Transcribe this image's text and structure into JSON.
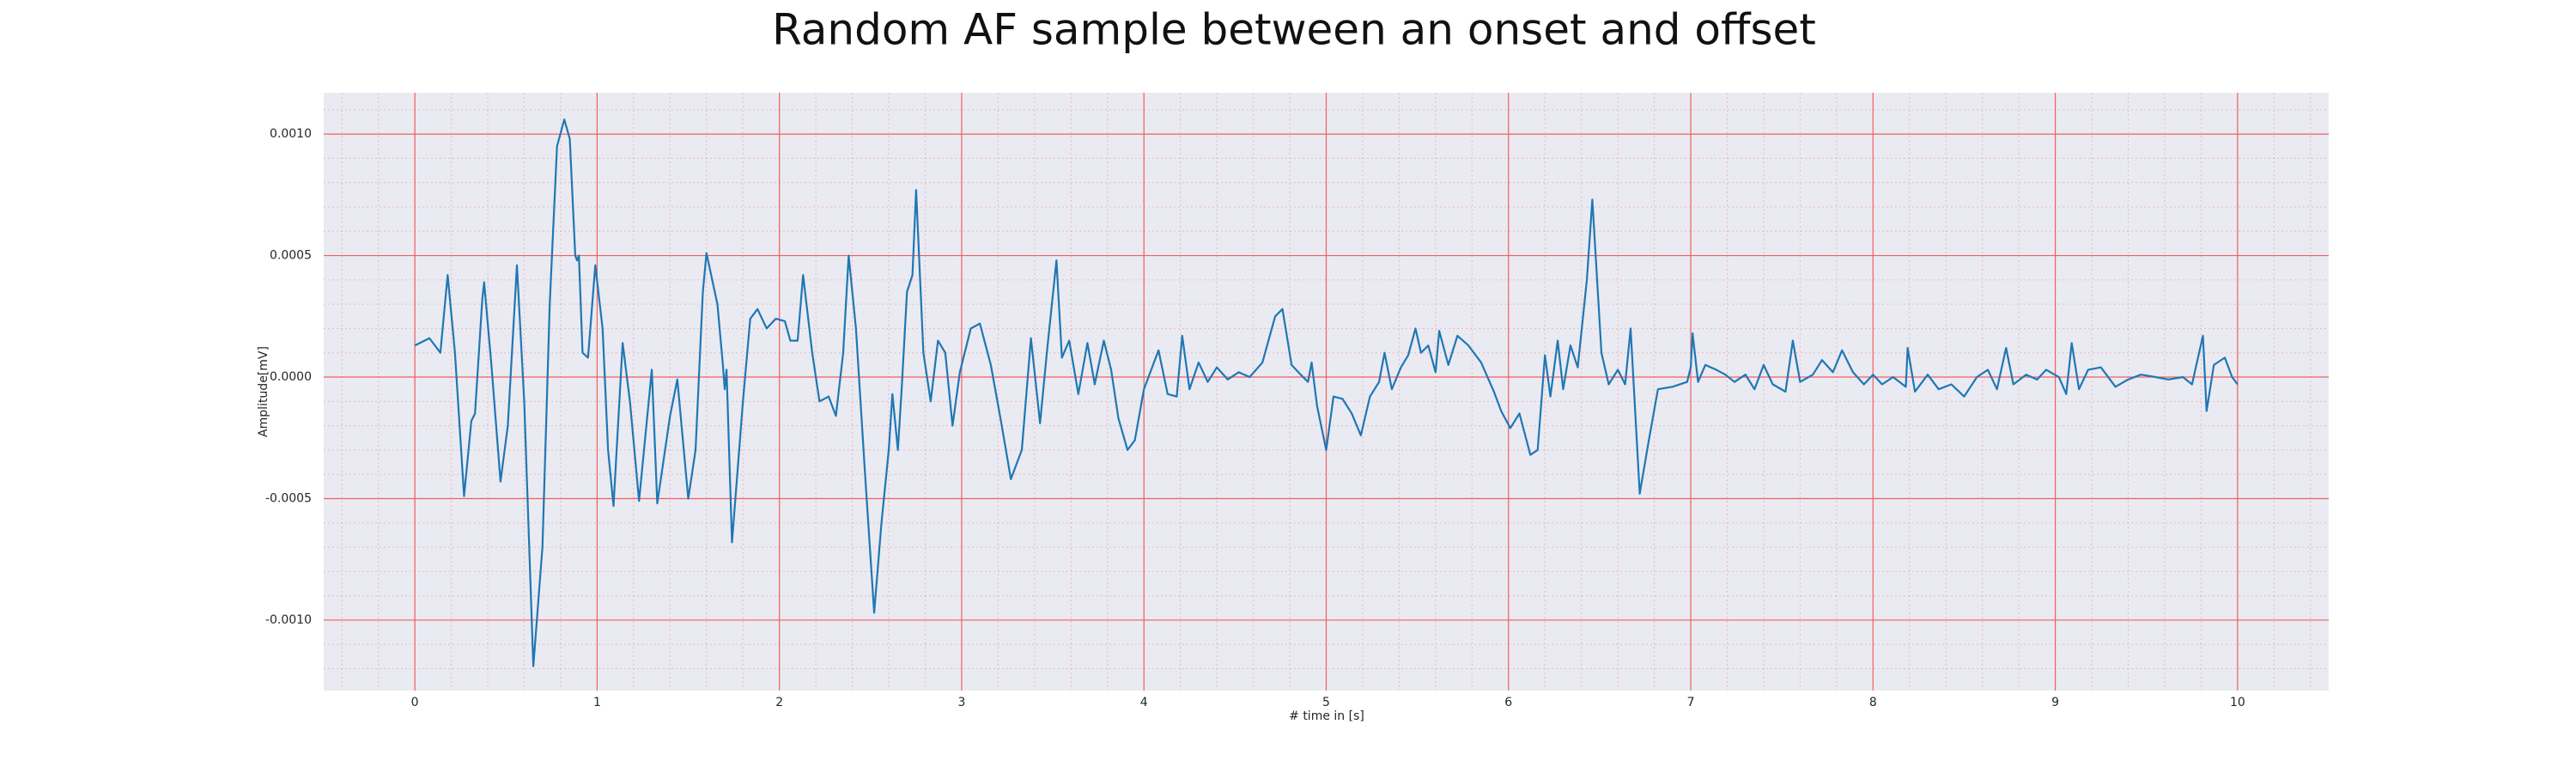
{
  "chart_data": {
    "type": "line",
    "title": "Random AF sample between an onset and offset",
    "x_label": "# time in [s]",
    "y_label": "Amplitude[mV]",
    "color": "#1f77b4",
    "grid": true,
    "grid_color": "#f06060",
    "minor_grid": {
      "x": 0.2,
      "y": 0.0001
    },
    "background": "#eaeaf2",
    "xlim": [
      -0.5,
      10.5
    ],
    "ylim": [
      -0.00129,
      0.00117
    ],
    "xticks": [
      0,
      1,
      2,
      3,
      4,
      5,
      6,
      7,
      8,
      9,
      10
    ],
    "yticks": [
      {
        "value": -0.001,
        "label": "-0.0010"
      },
      {
        "value": -0.0005,
        "label": "-0.0005"
      },
      {
        "value": 0,
        "label": "0.0000"
      },
      {
        "value": 0.0005,
        "label": "0.0005"
      },
      {
        "value": 0.001,
        "label": "0.0010"
      }
    ],
    "x": [
      0,
      0.08,
      0.14,
      0.18,
      0.22,
      0.27,
      0.31,
      0.33,
      0.37,
      0.38,
      0.42,
      0.47,
      0.51,
      0.56,
      0.6,
      0.65,
      0.7,
      0.74,
      0.78,
      0.82,
      0.85,
      0.88,
      0.89,
      0.9,
      0.92,
      0.95,
      0.99,
      1.03,
      1.06,
      1.09,
      1.14,
      1.18,
      1.23,
      1.3,
      1.33,
      1.4,
      1.44,
      1.5,
      1.54,
      1.58,
      1.6,
      1.66,
      1.69,
      1.7,
      1.71,
      1.74,
      1.8,
      1.84,
      1.88,
      1.93,
      1.98,
      2.03,
      2.06,
      2.1,
      2.13,
      2.18,
      2.22,
      2.27,
      2.31,
      2.35,
      2.38,
      2.42,
      2.47,
      2.52,
      2.56,
      2.6,
      2.62,
      2.65,
      2.67,
      2.7,
      2.73,
      2.75,
      2.79,
      2.83,
      2.87,
      2.91,
      2.95,
      2.99,
      3.05,
      3.1,
      3.16,
      3.22,
      3.27,
      3.33,
      3.38,
      3.43,
      3.47,
      3.52,
      3.55,
      3.59,
      3.64,
      3.69,
      3.73,
      3.78,
      3.82,
      3.86,
      3.91,
      3.95,
      4.0,
      4.08,
      4.13,
      4.18,
      4.21,
      4.25,
      4.3,
      4.35,
      4.4,
      4.46,
      4.52,
      4.58,
      4.65,
      4.72,
      4.76,
      4.81,
      4.86,
      4.9,
      4.92,
      4.95,
      5.0,
      5.04,
      5.09,
      5.14,
      5.19,
      5.24,
      5.29,
      5.32,
      5.36,
      5.41,
      5.45,
      5.49,
      5.52,
      5.56,
      5.6,
      5.62,
      5.67,
      5.72,
      5.78,
      5.85,
      5.92,
      5.96,
      6.01,
      6.06,
      6.12,
      6.16,
      6.2,
      6.23,
      6.27,
      6.3,
      6.34,
      6.38,
      6.43,
      6.46,
      6.51,
      6.55,
      6.6,
      6.64,
      6.67,
      6.72,
      6.77,
      6.82,
      6.9,
      6.98,
      7.0,
      7.01,
      7.04,
      7.08,
      7.14,
      7.19,
      7.24,
      7.3,
      7.35,
      7.4,
      7.45,
      7.52,
      7.56,
      7.6,
      7.67,
      7.72,
      7.78,
      7.83,
      7.89,
      7.95,
      8.0,
      8.05,
      8.11,
      8.18,
      8.19,
      8.23,
      8.3,
      8.36,
      8.43,
      8.5,
      8.57,
      8.63,
      8.68,
      8.73,
      8.77,
      8.84,
      8.9,
      8.95,
      9.02,
      9.06,
      9.09,
      9.13,
      9.18,
      9.25,
      9.33,
      9.4,
      9.47,
      9.55,
      9.62,
      9.7,
      9.75,
      9.81,
      9.83,
      9.87,
      9.93,
      9.97,
      10.0
    ],
    "values": [
      0.00013,
      0.00016,
      0.0001,
      0.00042,
      0.0001,
      -0.00049,
      -0.00018,
      -0.00015,
      0.00032,
      0.00039,
      5e-05,
      -0.00043,
      -0.0002,
      0.00046,
      -0.0001,
      -0.00119,
      -0.0007,
      0.0003,
      0.00095,
      0.00106,
      0.00098,
      0.0005,
      0.00048,
      0.0005,
      0.0001,
      8e-05,
      0.00046,
      0.0002,
      -0.0003,
      -0.00053,
      0.00014,
      -0.0001,
      -0.00051,
      3e-05,
      -0.00052,
      -0.00016,
      -1e-05,
      -0.0005,
      -0.0003,
      0.00035,
      0.00051,
      0.0003,
      5e-05,
      -5e-05,
      3e-05,
      -0.00068,
      -0.0001,
      0.00024,
      0.00028,
      0.0002,
      0.00024,
      0.00023,
      0.00015,
      0.00015,
      0.00042,
      0.0001,
      -0.0001,
      -8e-05,
      -0.00016,
      0.0001,
      0.0005,
      0.0002,
      -0.0004,
      -0.00097,
      -0.0006,
      -0.0003,
      -7e-05,
      -0.0003,
      -6e-05,
      0.00035,
      0.00042,
      0.00077,
      0.0001,
      -0.0001,
      0.00015,
      0.0001,
      -0.0002,
      2e-05,
      0.0002,
      0.00022,
      5e-05,
      -0.0002,
      -0.00042,
      -0.0003,
      0.00016,
      -0.00019,
      0.00012,
      0.00048,
      8e-05,
      0.00015,
      -7e-05,
      0.00014,
      -3e-05,
      0.00015,
      3e-05,
      -0.00017,
      -0.0003,
      -0.00026,
      -5e-05,
      0.00011,
      -7e-05,
      -8e-05,
      0.00017,
      -5e-05,
      6e-05,
      -2e-05,
      4e-05,
      -1e-05,
      2e-05,
      0.0,
      6e-05,
      0.00025,
      0.00028,
      5e-05,
      1e-05,
      -2e-05,
      6e-05,
      -0.00012,
      -0.0003,
      -8e-05,
      -9e-05,
      -0.00015,
      -0.00024,
      -8e-05,
      -2e-05,
      0.0001,
      -5e-05,
      4e-05,
      9e-05,
      0.0002,
      0.0001,
      0.00013,
      2e-05,
      0.00019,
      5e-05,
      0.00017,
      0.00013,
      6e-05,
      -6e-05,
      -0.00014,
      -0.00021,
      -0.00015,
      -0.00032,
      -0.0003,
      9e-05,
      -8e-05,
      0.00015,
      -5e-05,
      0.00013,
      4e-05,
      0.0004,
      0.00073,
      0.0001,
      -3e-05,
      3e-05,
      -3e-05,
      0.0002,
      -0.00048,
      -0.00026,
      -5e-05,
      -4e-05,
      -2e-05,
      4e-05,
      0.00018,
      -2e-05,
      5e-05,
      3e-05,
      1e-05,
      -2e-05,
      1e-05,
      -5e-05,
      5e-05,
      -3e-05,
      -6e-05,
      0.00015,
      -2e-05,
      1e-05,
      7e-05,
      2e-05,
      0.00011,
      2e-05,
      -3e-05,
      1e-05,
      -3e-05,
      0.0,
      -4e-05,
      0.00012,
      -6e-05,
      1e-05,
      -5e-05,
      -3e-05,
      -8e-05,
      0.0,
      3e-05,
      -5e-05,
      0.00012,
      -3e-05,
      1e-05,
      -1e-05,
      3e-05,
      0.0,
      -7e-05,
      0.00014,
      -5e-05,
      3e-05,
      4e-05,
      -4e-05,
      -1e-05,
      1e-05,
      0.0,
      -1e-05,
      0.0,
      -3e-05,
      0.00017,
      -0.00014,
      5e-05,
      8e-05,
      0.0,
      -3e-05
    ]
  }
}
